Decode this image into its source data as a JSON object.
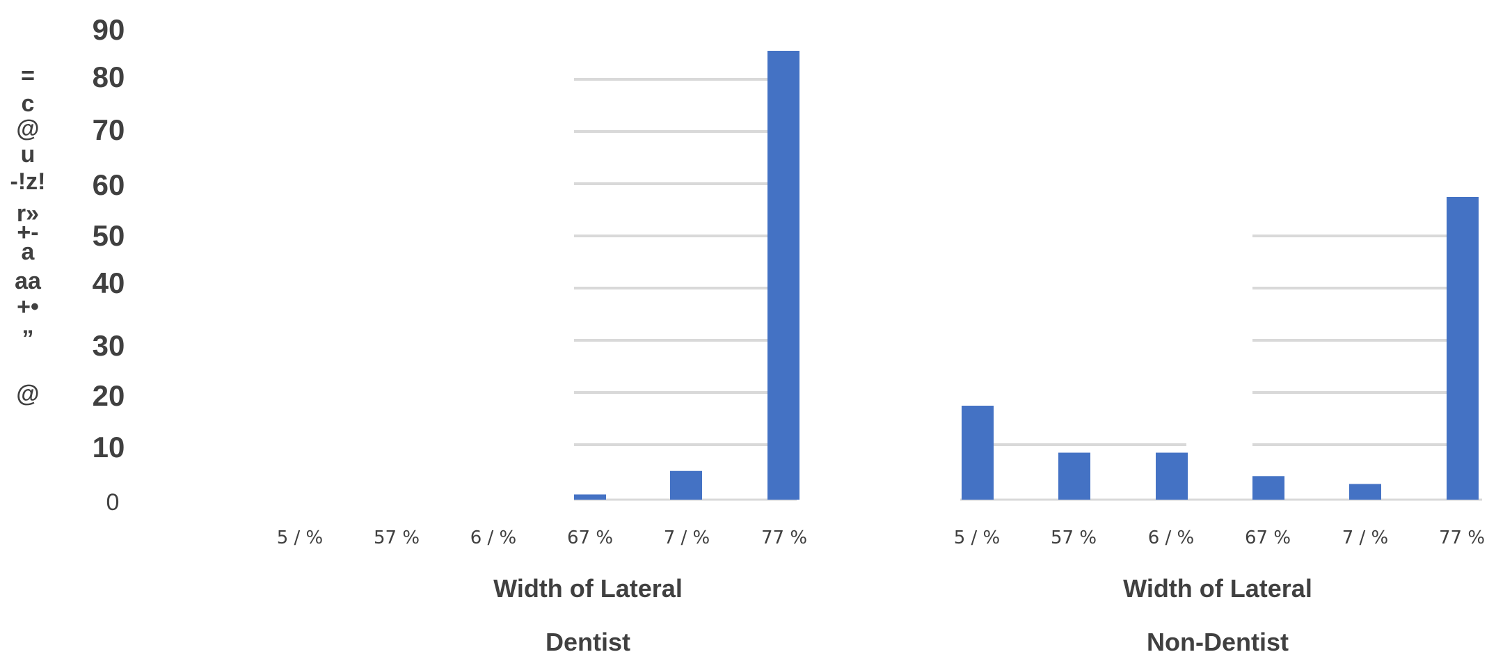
{
  "chart_data": {
    "type": "bar",
    "ylim": [
      0,
      90
    ],
    "yticks": [
      "0",
      "10",
      "20",
      "30",
      "40",
      "50",
      "60",
      "70",
      "80",
      "90"
    ],
    "ylabel_chars": [
      "=",
      "c",
      "@",
      "u",
      "-!z!",
      "r»",
      "+-",
      "a",
      "aa",
      "+•",
      "”",
      "@"
    ],
    "bar_color": "#4472c4",
    "grid_color": "#d9d9d9",
    "panels": [
      {
        "title": "Dentist",
        "xlabel": "Width of Lateral",
        "categories": [
          "5 / %",
          "57 %",
          "6 / %",
          "67 %",
          "7 / %",
          "77 %"
        ],
        "values": [
          0,
          0,
          0,
          1,
          5.5,
          86
        ]
      },
      {
        "title": "Non-Dentist",
        "xlabel": "Width of Lateral",
        "categories": [
          "5 / %",
          "57 %",
          "6 / %",
          "67 %",
          "7 / %",
          "77 %"
        ],
        "values": [
          18,
          9,
          9,
          4.5,
          3,
          58
        ]
      }
    ]
  }
}
